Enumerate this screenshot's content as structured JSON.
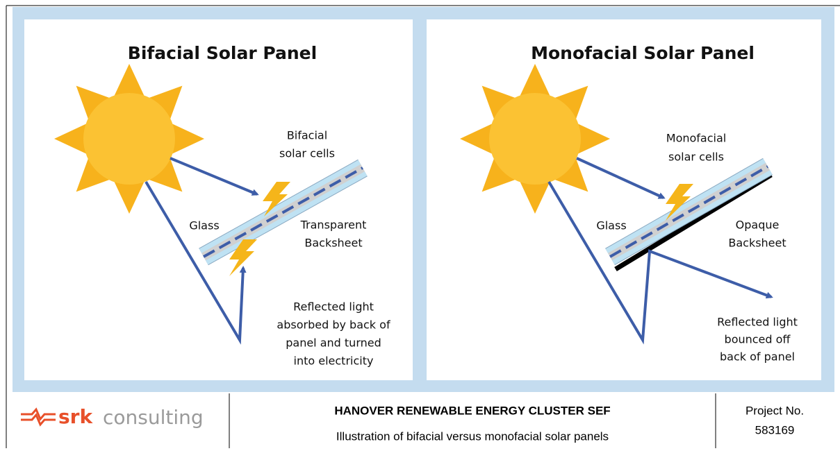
{
  "panels": [
    {
      "title": "Bifacial Solar Panel",
      "cells": [
        "Bifacial",
        "solar cells"
      ],
      "glass": "Glass",
      "backsheet": [
        "Transparent",
        "Backsheet"
      ],
      "reflected": [
        "Reflected light",
        "absorbed by back of",
        "panel and turned",
        "into electricity"
      ]
    },
    {
      "title": "Monofacial Solar Panel",
      "cells": [
        "Monofacial",
        "solar cells"
      ],
      "glass": "Glass",
      "backsheet": [
        "Opaque",
        "Backsheet"
      ],
      "reflected": [
        "Reflected light",
        "bounced off",
        "back of panel"
      ]
    }
  ],
  "footer": {
    "logo": [
      "srk",
      "consulting"
    ],
    "title": "HANOVER RENEWABLE ENERGY CLUSTER SEF",
    "subtitle": "Illustration of bifacial versus monofacial solar panels",
    "project": [
      "Project No.",
      "583169"
    ]
  }
}
